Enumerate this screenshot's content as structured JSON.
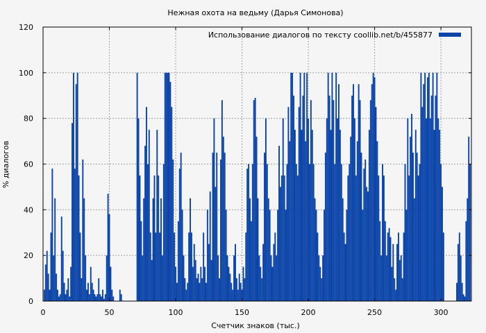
{
  "chart_data": {
    "type": "bar",
    "title": "Нежная охота на ведьму (Дарья Симонова)",
    "xlabel": "Счетчик знаков (тыс.)",
    "ylabel": "% диалогов",
    "xlim": [
      0,
      323
    ],
    "ylim": [
      0,
      120
    ],
    "xticks": [
      0,
      50,
      100,
      150,
      200,
      250,
      300
    ],
    "yticks": [
      0,
      20,
      40,
      60,
      80,
      100,
      120
    ],
    "grid": true,
    "legend_position": "top-right",
    "series": [
      {
        "name": "Использование диалогов по тексту  coollib.net/b/455877",
        "color": "#0b44a8",
        "points": [
          [
            1,
            5
          ],
          [
            2,
            16
          ],
          [
            3,
            22
          ],
          [
            4,
            12
          ],
          [
            5,
            5
          ],
          [
            6,
            30
          ],
          [
            7,
            58
          ],
          [
            8,
            20
          ],
          [
            9,
            45
          ],
          [
            10,
            12
          ],
          [
            11,
            5
          ],
          [
            12,
            2
          ],
          [
            13,
            3
          ],
          [
            14,
            37
          ],
          [
            15,
            22
          ],
          [
            16,
            8
          ],
          [
            17,
            3
          ],
          [
            18,
            5
          ],
          [
            19,
            10
          ],
          [
            20,
            2
          ],
          [
            21,
            15
          ],
          [
            22,
            78
          ],
          [
            23,
            100
          ],
          [
            24,
            58
          ],
          [
            25,
            95
          ],
          [
            26,
            100
          ],
          [
            27,
            55
          ],
          [
            28,
            30
          ],
          [
            29,
            10
          ],
          [
            30,
            62
          ],
          [
            31,
            45
          ],
          [
            32,
            20
          ],
          [
            33,
            5
          ],
          [
            34,
            8
          ],
          [
            35,
            3
          ],
          [
            36,
            15
          ],
          [
            37,
            8
          ],
          [
            38,
            5
          ],
          [
            39,
            3
          ],
          [
            40,
            2
          ],
          [
            41,
            3
          ],
          [
            42,
            10
          ],
          [
            43,
            3
          ],
          [
            44,
            2
          ],
          [
            45,
            5
          ],
          [
            46,
            1
          ],
          [
            47,
            3
          ],
          [
            48,
            20
          ],
          [
            49,
            47
          ],
          [
            50,
            38
          ],
          [
            51,
            15
          ],
          [
            52,
            5
          ],
          [
            53,
            2
          ],
          [
            58,
            5
          ],
          [
            59,
            3
          ],
          [
            71,
            100
          ],
          [
            72,
            80
          ],
          [
            73,
            55
          ],
          [
            74,
            35
          ],
          [
            75,
            20
          ],
          [
            76,
            45
          ],
          [
            77,
            68
          ],
          [
            78,
            85
          ],
          [
            79,
            60
          ],
          [
            80,
            75
          ],
          [
            81,
            30
          ],
          [
            82,
            18
          ],
          [
            83,
            45
          ],
          [
            84,
            55
          ],
          [
            85,
            30
          ],
          [
            86,
            75
          ],
          [
            87,
            55
          ],
          [
            88,
            30
          ],
          [
            89,
            45
          ],
          [
            90,
            20
          ],
          [
            91,
            60
          ],
          [
            92,
            100
          ],
          [
            93,
            100
          ],
          [
            94,
            100
          ],
          [
            95,
            100
          ],
          [
            96,
            96
          ],
          [
            97,
            85
          ],
          [
            98,
            62
          ],
          [
            99,
            30
          ],
          [
            100,
            15
          ],
          [
            101,
            8
          ],
          [
            102,
            35
          ],
          [
            103,
            58
          ],
          [
            104,
            65
          ],
          [
            105,
            40
          ],
          [
            106,
            20
          ],
          [
            107,
            10
          ],
          [
            108,
            5
          ],
          [
            109,
            8
          ],
          [
            110,
            30
          ],
          [
            111,
            45
          ],
          [
            112,
            30
          ],
          [
            113,
            15
          ],
          [
            114,
            25
          ],
          [
            115,
            18
          ],
          [
            116,
            10
          ],
          [
            117,
            12
          ],
          [
            118,
            8
          ],
          [
            119,
            15
          ],
          [
            120,
            10
          ],
          [
            121,
            30
          ],
          [
            122,
            15
          ],
          [
            123,
            8
          ],
          [
            124,
            40
          ],
          [
            125,
            25
          ],
          [
            126,
            48
          ],
          [
            127,
            18
          ],
          [
            128,
            65
          ],
          [
            129,
            80
          ],
          [
            130,
            50
          ],
          [
            131,
            65
          ],
          [
            132,
            20
          ],
          [
            133,
            10
          ],
          [
            134,
            62
          ],
          [
            135,
            88
          ],
          [
            136,
            72
          ],
          [
            137,
            65
          ],
          [
            138,
            40
          ],
          [
            139,
            20
          ],
          [
            140,
            15
          ],
          [
            141,
            12
          ],
          [
            142,
            8
          ],
          [
            143,
            5
          ],
          [
            144,
            20
          ],
          [
            145,
            25
          ],
          [
            146,
            10
          ],
          [
            147,
            5
          ],
          [
            148,
            12
          ],
          [
            149,
            8
          ],
          [
            150,
            5
          ],
          [
            151,
            15
          ],
          [
            152,
            10
          ],
          [
            153,
            30
          ],
          [
            154,
            58
          ],
          [
            155,
            60
          ],
          [
            156,
            45
          ],
          [
            157,
            35
          ],
          [
            158,
            60
          ],
          [
            159,
            88
          ],
          [
            160,
            89
          ],
          [
            161,
            72
          ],
          [
            162,
            45
          ],
          [
            163,
            20
          ],
          [
            164,
            15
          ],
          [
            165,
            10
          ],
          [
            166,
            25
          ],
          [
            167,
            65
          ],
          [
            168,
            80
          ],
          [
            169,
            60
          ],
          [
            170,
            45
          ],
          [
            171,
            40
          ],
          [
            172,
            20
          ],
          [
            173,
            15
          ],
          [
            174,
            25
          ],
          [
            175,
            30
          ],
          [
            176,
            20
          ],
          [
            177,
            40
          ],
          [
            178,
            68
          ],
          [
            179,
            50
          ],
          [
            180,
            55
          ],
          [
            181,
            80
          ],
          [
            182,
            55
          ],
          [
            183,
            40
          ],
          [
            184,
            60
          ],
          [
            185,
            85
          ],
          [
            186,
            70
          ],
          [
            187,
            100
          ],
          [
            188,
            100
          ],
          [
            189,
            90
          ],
          [
            190,
            75
          ],
          [
            191,
            60
          ],
          [
            192,
            55
          ],
          [
            193,
            85
          ],
          [
            194,
            100
          ],
          [
            195,
            75
          ],
          [
            196,
            90
          ],
          [
            197,
            100
          ],
          [
            198,
            70
          ],
          [
            199,
            100
          ],
          [
            200,
            80
          ],
          [
            201,
            60
          ],
          [
            202,
            88
          ],
          [
            203,
            75
          ],
          [
            204,
            60
          ],
          [
            205,
            45
          ],
          [
            206,
            40
          ],
          [
            207,
            30
          ],
          [
            208,
            20
          ],
          [
            209,
            15
          ],
          [
            210,
            10
          ],
          [
            211,
            20
          ],
          [
            212,
            40
          ],
          [
            213,
            65
          ],
          [
            214,
            80
          ],
          [
            215,
            100
          ],
          [
            216,
            90
          ],
          [
            217,
            75
          ],
          [
            218,
            100
          ],
          [
            219,
            88
          ],
          [
            220,
            60
          ],
          [
            221,
            100
          ],
          [
            222,
            80
          ],
          [
            223,
            95
          ],
          [
            224,
            75
          ],
          [
            225,
            60
          ],
          [
            226,
            45
          ],
          [
            227,
            30
          ],
          [
            228,
            25
          ],
          [
            229,
            40
          ],
          [
            230,
            55
          ],
          [
            231,
            60
          ],
          [
            232,
            72
          ],
          [
            233,
            90
          ],
          [
            234,
            95
          ],
          [
            235,
            80
          ],
          [
            236,
            55
          ],
          [
            237,
            70
          ],
          [
            238,
            95
          ],
          [
            239,
            88
          ],
          [
            240,
            65
          ],
          [
            241,
            40
          ],
          [
            242,
            58
          ],
          [
            243,
            62
          ],
          [
            244,
            50
          ],
          [
            245,
            48
          ],
          [
            246,
            75
          ],
          [
            247,
            88
          ],
          [
            248,
            95
          ],
          [
            249,
            100
          ],
          [
            250,
            98
          ],
          [
            251,
            85
          ],
          [
            252,
            70
          ],
          [
            253,
            55
          ],
          [
            254,
            35
          ],
          [
            255,
            20
          ],
          [
            256,
            60
          ],
          [
            257,
            55
          ],
          [
            258,
            35
          ],
          [
            259,
            20
          ],
          [
            260,
            30
          ],
          [
            261,
            32
          ],
          [
            262,
            28
          ],
          [
            263,
            15
          ],
          [
            264,
            25
          ],
          [
            265,
            10
          ],
          [
            266,
            5
          ],
          [
            267,
            25
          ],
          [
            268,
            30
          ],
          [
            269,
            18
          ],
          [
            270,
            20
          ],
          [
            271,
            10
          ],
          [
            272,
            30
          ],
          [
            273,
            60
          ],
          [
            274,
            40
          ],
          [
            275,
            80
          ],
          [
            276,
            55
          ],
          [
            277,
            72
          ],
          [
            278,
            82
          ],
          [
            279,
            65
          ],
          [
            280,
            45
          ],
          [
            281,
            75
          ],
          [
            282,
            65
          ],
          [
            283,
            55
          ],
          [
            284,
            60
          ],
          [
            285,
            100
          ],
          [
            286,
            85
          ],
          [
            287,
            95
          ],
          [
            288,
            100
          ],
          [
            289,
            80
          ],
          [
            290,
            98
          ],
          [
            291,
            100
          ],
          [
            292,
            80
          ],
          [
            293,
            90
          ],
          [
            294,
            100
          ],
          [
            295,
            75
          ],
          [
            296,
            90
          ],
          [
            297,
            100
          ],
          [
            298,
            80
          ],
          [
            299,
            75
          ],
          [
            300,
            60
          ],
          [
            301,
            50
          ],
          [
            302,
            30
          ],
          [
            312,
            8
          ],
          [
            313,
            25
          ],
          [
            314,
            30
          ],
          [
            315,
            20
          ],
          [
            316,
            8
          ],
          [
            317,
            3
          ],
          [
            318,
            2
          ],
          [
            319,
            35
          ],
          [
            320,
            45
          ],
          [
            321,
            72
          ],
          [
            322,
            60
          ]
        ]
      }
    ]
  }
}
